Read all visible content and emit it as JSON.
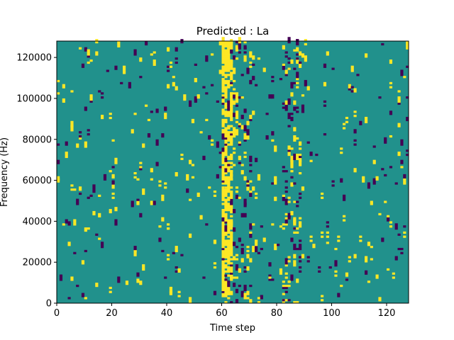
{
  "chart_data": {
    "type": "heatmap",
    "title": "Predicted : La",
    "xlabel": "Time step",
    "ylabel": "Frequency (Hz)",
    "xlim": [
      0,
      128
    ],
    "ylim": [
      0,
      128000
    ],
    "x_ticks": [
      0,
      20,
      40,
      60,
      80,
      100,
      120
    ],
    "y_ticks": [
      0,
      20000,
      40000,
      60000,
      80000,
      100000,
      120000
    ],
    "y_tick_labels": [
      "0",
      "20000",
      "40000",
      "60000",
      "80000",
      "100000",
      "120000"
    ],
    "grid": false,
    "colormap": "viridis",
    "colors": {
      "background_value": "#21918c",
      "high_value": "#fde725",
      "low_value": "#440154"
    },
    "cells_description": "Sparse binary-like matrix: mostly mid value, scattered high (yellow) and low (purple) cells; dense vertical band of high values around time steps 60-63",
    "cells": [
      {
        "t": 61,
        "f": 0,
        "v": "high"
      },
      {
        "t": 62,
        "f": 4000,
        "v": "high"
      },
      {
        "t": 63,
        "f": 12000,
        "v": "high"
      },
      {
        "t": 61,
        "f": 20000,
        "v": "high"
      },
      {
        "t": 62,
        "f": 30000,
        "v": "high"
      },
      {
        "t": 61,
        "f": 40000,
        "v": "high"
      },
      {
        "t": 62,
        "f": 50000,
        "v": "high"
      },
      {
        "t": 61,
        "f": 56000,
        "v": "high"
      },
      {
        "t": 62,
        "f": 64000,
        "v": "high"
      },
      {
        "t": 61,
        "f": 72000,
        "v": "high"
      },
      {
        "t": 60,
        "f": 84000,
        "v": "high"
      },
      {
        "t": 63,
        "f": 60000,
        "v": "high"
      },
      {
        "t": 66,
        "f": 16000,
        "v": "high"
      },
      {
        "t": 66,
        "f": 68000,
        "v": "low"
      },
      {
        "t": 67,
        "f": 28000,
        "v": "low"
      },
      {
        "t": 68,
        "f": 6000,
        "v": "low"
      },
      {
        "t": 85,
        "f": 64000,
        "v": "high"
      },
      {
        "t": 84,
        "f": 10000,
        "v": "high"
      },
      {
        "t": 34,
        "f": 60000,
        "v": "high"
      },
      {
        "t": 40,
        "f": 36000,
        "v": "high"
      },
      {
        "t": 120,
        "f": 42000,
        "v": "high"
      },
      {
        "t": 127,
        "f": 100000,
        "v": "low"
      },
      {
        "t": 65,
        "f": 12000,
        "v": "high"
      },
      {
        "t": 64,
        "f": 12000,
        "v": "high"
      }
    ]
  }
}
